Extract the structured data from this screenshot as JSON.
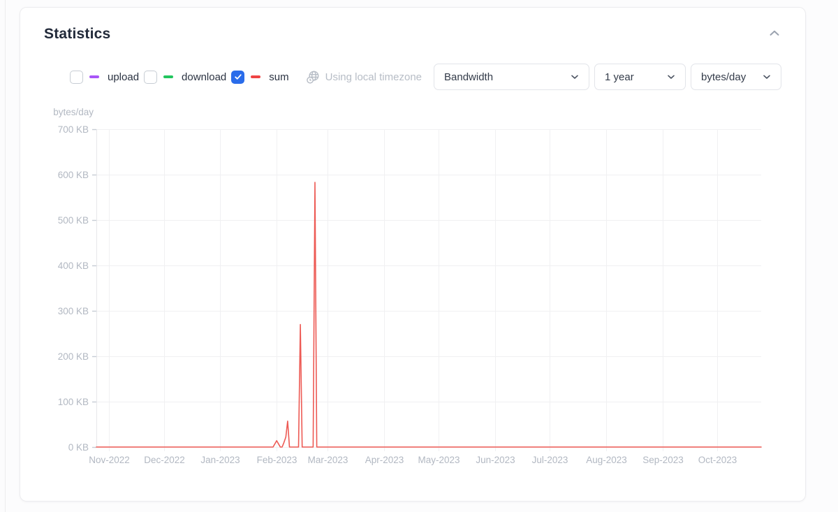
{
  "card": {
    "title": "Statistics"
  },
  "legend": {
    "checkbox_checked_color": "#2a6cea",
    "items": [
      {
        "label": "upload",
        "color": "#a855f7",
        "checked": false
      },
      {
        "label": "download",
        "color": "#22c55e",
        "checked": false
      },
      {
        "label": "sum",
        "color": "#ef4444",
        "checked": true
      }
    ]
  },
  "timezone": {
    "icon": "globe-clock-icon",
    "label": "Using local timezone"
  },
  "selects": [
    {
      "name": "metric",
      "value": "Bandwidth"
    },
    {
      "name": "range",
      "value": "1 year"
    },
    {
      "name": "unit",
      "value": "bytes/day"
    }
  ],
  "chart_data": {
    "type": "line",
    "title": "",
    "xlabel": "",
    "ylabel": "bytes/day",
    "y_unit": "KB",
    "ylim_kb": [
      0,
      700
    ],
    "y_tick_labels": [
      "0 KB",
      "100 KB",
      "200 KB",
      "300 KB",
      "400 KB",
      "500 KB",
      "600 KB",
      "700 KB"
    ],
    "grid": true,
    "legend_position": "none",
    "x_range": [
      "2022-10-25",
      "2023-10-25"
    ],
    "x_ticks": [
      {
        "t": "2022-11-01",
        "label": "Nov-2022"
      },
      {
        "t": "2022-12-01",
        "label": "Dec-2022"
      },
      {
        "t": "2023-01-01",
        "label": "Jan-2023"
      },
      {
        "t": "2023-02-01",
        "label": "Feb-2023"
      },
      {
        "t": "2023-03-01",
        "label": "Mar-2023"
      },
      {
        "t": "2023-04-01",
        "label": "Apr-2023"
      },
      {
        "t": "2023-05-01",
        "label": "May-2023"
      },
      {
        "t": "2023-06-01",
        "label": "Jun-2023"
      },
      {
        "t": "2023-07-01",
        "label": "Jul-2023"
      },
      {
        "t": "2023-08-01",
        "label": "Aug-2023"
      },
      {
        "t": "2023-09-01",
        "label": "Sep-2023"
      },
      {
        "t": "2023-10-01",
        "label": "Oct-2023"
      }
    ],
    "series": [
      {
        "name": "sum",
        "color": "#ed5a54",
        "points_kb": [
          [
            "2022-10-25",
            0
          ],
          [
            "2023-01-30",
            0
          ],
          [
            "2023-02-01",
            14
          ],
          [
            "2023-02-03",
            0
          ],
          [
            "2023-02-04",
            0
          ],
          [
            "2023-02-05",
            10
          ],
          [
            "2023-02-06",
            22
          ],
          [
            "2023-02-07",
            57
          ],
          [
            "2023-02-08",
            0
          ],
          [
            "2023-02-13",
            0
          ],
          [
            "2023-02-14",
            270
          ],
          [
            "2023-02-15",
            0
          ],
          [
            "2023-02-21",
            0
          ],
          [
            "2023-02-22",
            583
          ],
          [
            "2023-02-23",
            0
          ],
          [
            "2023-10-25",
            0
          ]
        ]
      }
    ]
  }
}
